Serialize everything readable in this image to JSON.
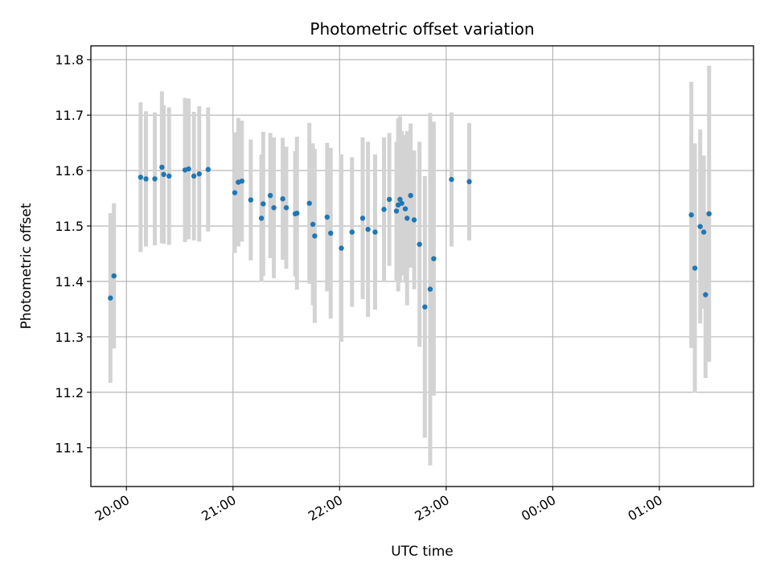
{
  "chart_data": {
    "type": "scatter",
    "title": "Photometric offset variation",
    "xlabel": "UTC time",
    "ylabel": "Photometric offset",
    "x_unit": "UTC",
    "xlim": [
      "19:40",
      "01:53"
    ],
    "ylim": [
      11.03,
      11.825
    ],
    "x_ticks": [
      "20:00",
      "21:00",
      "22:00",
      "23:00",
      "00:00",
      "01:00"
    ],
    "y_ticks": [
      "11.1",
      "11.2",
      "11.3",
      "11.4",
      "11.5",
      "11.6",
      "11.7",
      "11.8"
    ],
    "grid": true,
    "colors": {
      "point": "#1f77b4",
      "errorbar": "#d3d3d3",
      "grid": "#b0b0b0"
    },
    "series": [
      {
        "x": [
          "19:51",
          "19:53",
          "20:08",
          "20:11",
          "20:16",
          "20:20",
          "20:21",
          "20:24",
          "20:33",
          "20:35",
          "20:38",
          "20:41",
          "20:46",
          "21:01",
          "21:03",
          "21:05",
          "21:10",
          "21:16",
          "21:17",
          "21:21",
          "21:23",
          "21:28",
          "21:30",
          "21:35",
          "21:36",
          "21:43",
          "21:45",
          "21:46",
          "21:53",
          "21:55",
          "22:01",
          "22:07",
          "22:13",
          "22:16",
          "22:20",
          "22:25",
          "22:28",
          "22:32",
          "22:33",
          "22:34",
          "22:35",
          "22:37",
          "22:38",
          "22:40",
          "22:42",
          "22:45",
          "22:48",
          "22:51",
          "22:53",
          "23:03",
          "23:13",
          "01:18",
          "01:20",
          "01:23",
          "01:25",
          "01:26",
          "01:28"
        ],
        "y": [
          11.37,
          11.41,
          11.588,
          11.585,
          11.585,
          11.606,
          11.593,
          11.59,
          11.601,
          11.603,
          11.59,
          11.594,
          11.602,
          11.56,
          11.579,
          11.581,
          11.547,
          11.514,
          11.54,
          11.555,
          11.533,
          11.549,
          11.533,
          11.522,
          11.523,
          11.541,
          11.503,
          11.482,
          11.516,
          11.487,
          11.46,
          11.489,
          11.514,
          11.494,
          11.489,
          11.53,
          11.548,
          11.527,
          11.538,
          11.548,
          11.541,
          11.531,
          11.514,
          11.555,
          11.511,
          11.467,
          11.354,
          11.386,
          11.441,
          11.584,
          11.58,
          11.52,
          11.424,
          11.499,
          11.489,
          11.376,
          11.522
        ],
        "yerr": [
          0.153,
          0.131,
          0.135,
          0.122,
          0.12,
          0.137,
          0.125,
          0.124,
          0.13,
          0.127,
          0.116,
          0.122,
          0.112,
          0.109,
          0.116,
          0.109,
          0.109,
          0.115,
          0.13,
          0.113,
          0.127,
          0.11,
          0.11,
          0.113,
          0.138,
          0.145,
          0.146,
          0.157,
          0.134,
          0.154,
          0.169,
          0.135,
          0.146,
          0.158,
          0.14,
          0.13,
          0.12,
          0.125,
          0.156,
          0.15,
          0.13,
          0.133,
          0.157,
          0.13,
          0.125,
          0.185,
          0.236,
          0.318,
          0.247,
          0.121,
          0.106,
          0.24,
          0.225,
          0.175,
          0.138,
          0.15,
          0.267
        ]
      }
    ]
  }
}
